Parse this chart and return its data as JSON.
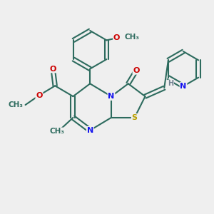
{
  "bg_color": "#efefef",
  "bond_color": "#2d6b5e",
  "bond_width": 1.5,
  "N_color": "#1515ee",
  "O_color": "#cc0000",
  "S_color": "#b8a000",
  "H_color": "#708090",
  "figsize": [
    3.0,
    3.0
  ],
  "dpi": 100,
  "xlim": [
    0,
    10
  ],
  "ylim": [
    0,
    10
  ]
}
